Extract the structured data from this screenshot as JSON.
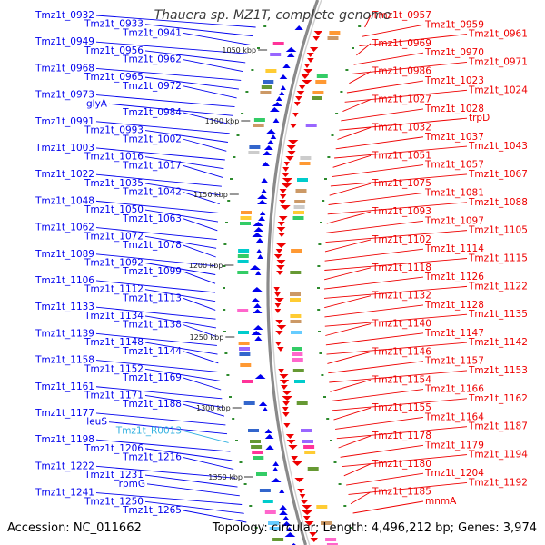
{
  "title": "Thauera sp. MZ1T, complete genome",
  "footer": {
    "accession": "Accession: NC_011662",
    "summary": "Topology: circular; Length: 4,496,212 bp; Genes: 3,974"
  },
  "colors": {
    "forward": "#0000ee",
    "reverse": "#ee0000",
    "rna": "#30b0e0",
    "backbone": "#8a8a8a"
  },
  "scale_ticks": [
    "1050 kbp",
    "1100 kbp",
    "1150 kbp",
    "1200 kbp",
    "1250 kbp",
    "1300 kbp",
    "1350 kbp"
  ],
  "left_labels": [
    {
      "text": "Tmz1t_0932",
      "type": "forward"
    },
    {
      "text": "Tmz1t_0933",
      "type": "forward"
    },
    {
      "text": "Tmz1t_0941",
      "type": "forward"
    },
    {
      "text": "Tmz1t_0949",
      "type": "forward"
    },
    {
      "text": "Tmz1t_0956",
      "type": "forward"
    },
    {
      "text": "Tmz1t_0962",
      "type": "forward"
    },
    {
      "text": "Tmz1t_0968",
      "type": "forward"
    },
    {
      "text": "Tmz1t_0965",
      "type": "forward"
    },
    {
      "text": "Tmz1t_0972",
      "type": "forward"
    },
    {
      "text": "Tmz1t_0973",
      "type": "forward"
    },
    {
      "text": "glyA",
      "type": "forward"
    },
    {
      "text": "Tmz1t_0984",
      "type": "forward"
    },
    {
      "text": "Tmz1t_0991",
      "type": "forward"
    },
    {
      "text": "Tmz1t_0993",
      "type": "forward"
    },
    {
      "text": "Tmz1t_1002",
      "type": "forward"
    },
    {
      "text": "Tmz1t_1003",
      "type": "forward"
    },
    {
      "text": "Tmz1t_1016",
      "type": "forward"
    },
    {
      "text": "Tmz1t_1017",
      "type": "forward"
    },
    {
      "text": "Tmz1t_1022",
      "type": "forward"
    },
    {
      "text": "Tmz1t_1035",
      "type": "forward"
    },
    {
      "text": "Tmz1t_1042",
      "type": "forward"
    },
    {
      "text": "Tmz1t_1048",
      "type": "forward"
    },
    {
      "text": "Tmz1t_1050",
      "type": "forward"
    },
    {
      "text": "Tmz1t_1063",
      "type": "forward"
    },
    {
      "text": "Tmz1t_1062",
      "type": "forward"
    },
    {
      "text": "Tmz1t_1072",
      "type": "forward"
    },
    {
      "text": "Tmz1t_1078",
      "type": "forward"
    },
    {
      "text": "Tmz1t_1089",
      "type": "forward"
    },
    {
      "text": "Tmz1t_1092",
      "type": "forward"
    },
    {
      "text": "Tmz1t_1099",
      "type": "forward"
    },
    {
      "text": "Tmz1t_1106",
      "type": "forward"
    },
    {
      "text": "Tmz1t_1112",
      "type": "forward"
    },
    {
      "text": "Tmz1t_1113",
      "type": "forward"
    },
    {
      "text": "Tmz1t_1133",
      "type": "forward"
    },
    {
      "text": "Tmz1t_1134",
      "type": "forward"
    },
    {
      "text": "Tmz1t_1138",
      "type": "forward"
    },
    {
      "text": "Tmz1t_1139",
      "type": "forward"
    },
    {
      "text": "Tmz1t_1148",
      "type": "forward"
    },
    {
      "text": "Tmz1t_1144",
      "type": "forward"
    },
    {
      "text": "Tmz1t_1158",
      "type": "forward"
    },
    {
      "text": "Tmz1t_1152",
      "type": "forward"
    },
    {
      "text": "Tmz1t_1169",
      "type": "forward"
    },
    {
      "text": "Tmz1t_1161",
      "type": "forward"
    },
    {
      "text": "Tmz1t_1171",
      "type": "forward"
    },
    {
      "text": "Tmz1t_1188",
      "type": "forward"
    },
    {
      "text": "Tmz1t_1177",
      "type": "forward"
    },
    {
      "text": "leuS",
      "type": "forward"
    },
    {
      "text": "Tmz1t_R0013",
      "type": "rna"
    },
    {
      "text": "Tmz1t_1198",
      "type": "forward"
    },
    {
      "text": "Tmz1t_1206",
      "type": "forward"
    },
    {
      "text": "Tmz1t_1216",
      "type": "forward"
    },
    {
      "text": "Tmz1t_1222",
      "type": "forward"
    },
    {
      "text": "Tmz1t_1231",
      "type": "forward"
    },
    {
      "text": "rpmG",
      "type": "forward"
    },
    {
      "text": "Tmz1t_1241",
      "type": "forward"
    },
    {
      "text": "Tmz1t_1250",
      "type": "forward"
    },
    {
      "text": "Tmz1t_1265",
      "type": "forward"
    }
  ],
  "right_labels": [
    {
      "text": "Tmz1t_0957",
      "type": "reverse"
    },
    {
      "text": "Tmz1t_0959",
      "type": "reverse"
    },
    {
      "text": "Tmz1t_0961",
      "type": "reverse"
    },
    {
      "text": "Tmz1t_0969",
      "type": "reverse"
    },
    {
      "text": "Tmz1t_0970",
      "type": "reverse"
    },
    {
      "text": "Tmz1t_0971",
      "type": "reverse"
    },
    {
      "text": "Tmz1t_0986",
      "type": "reverse"
    },
    {
      "text": "Tmz1t_1023",
      "type": "reverse"
    },
    {
      "text": "Tmz1t_1024",
      "type": "reverse"
    },
    {
      "text": "Tmz1t_1027",
      "type": "reverse"
    },
    {
      "text": "Tmz1t_1028",
      "type": "reverse"
    },
    {
      "text": "trpD",
      "type": "reverse"
    },
    {
      "text": "Tmz1t_1032",
      "type": "reverse"
    },
    {
      "text": "Tmz1t_1037",
      "type": "reverse"
    },
    {
      "text": "Tmz1t_1043",
      "type": "reverse"
    },
    {
      "text": "Tmz1t_1051",
      "type": "reverse"
    },
    {
      "text": "Tmz1t_1057",
      "type": "reverse"
    },
    {
      "text": "Tmz1t_1067",
      "type": "reverse"
    },
    {
      "text": "Tmz1t_1075",
      "type": "reverse"
    },
    {
      "text": "Tmz1t_1081",
      "type": "reverse"
    },
    {
      "text": "Tmz1t_1088",
      "type": "reverse"
    },
    {
      "text": "Tmz1t_1093",
      "type": "reverse"
    },
    {
      "text": "Tmz1t_1097",
      "type": "reverse"
    },
    {
      "text": "Tmz1t_1105",
      "type": "reverse"
    },
    {
      "text": "Tmz1t_1102",
      "type": "reverse"
    },
    {
      "text": "Tmz1t_1114",
      "type": "reverse"
    },
    {
      "text": "Tmz1t_1115",
      "type": "reverse"
    },
    {
      "text": "Tmz1t_1118",
      "type": "reverse"
    },
    {
      "text": "Tmz1t_1126",
      "type": "reverse"
    },
    {
      "text": "Tmz1t_1122",
      "type": "reverse"
    },
    {
      "text": "Tmz1t_1132",
      "type": "reverse"
    },
    {
      "text": "Tmz1t_1128",
      "type": "reverse"
    },
    {
      "text": "Tmz1t_1135",
      "type": "reverse"
    },
    {
      "text": "Tmz1t_1140",
      "type": "reverse"
    },
    {
      "text": "Tmz1t_1147",
      "type": "reverse"
    },
    {
      "text": "Tmz1t_1142",
      "type": "reverse"
    },
    {
      "text": "Tmz1t_1146",
      "type": "reverse"
    },
    {
      "text": "Tmz1t_1157",
      "type": "reverse"
    },
    {
      "text": "Tmz1t_1153",
      "type": "reverse"
    },
    {
      "text": "Tmz1t_1154",
      "type": "reverse"
    },
    {
      "text": "Tmz1t_1166",
      "type": "reverse"
    },
    {
      "text": "Tmz1t_1162",
      "type": "reverse"
    },
    {
      "text": "Tmz1t_1155",
      "type": "reverse"
    },
    {
      "text": "Tmz1t_1164",
      "type": "reverse"
    },
    {
      "text": "Tmz1t_1187",
      "type": "reverse"
    },
    {
      "text": "Tmz1t_1178",
      "type": "reverse"
    },
    {
      "text": "Tmz1t_1179",
      "type": "reverse"
    },
    {
      "text": "Tmz1t_1194",
      "type": "reverse"
    },
    {
      "text": "Tmz1t_1180",
      "type": "reverse"
    },
    {
      "text": "Tmz1t_1204",
      "type": "reverse"
    },
    {
      "text": "Tmz1t_1192",
      "type": "reverse"
    },
    {
      "text": "Tmz1t_1185",
      "type": "reverse"
    },
    {
      "text": "mnmA",
      "type": "reverse"
    }
  ]
}
